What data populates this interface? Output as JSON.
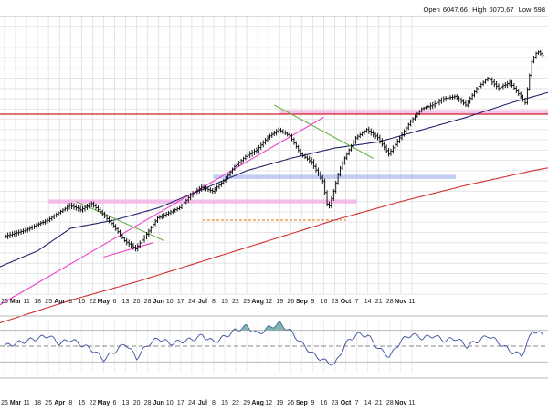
{
  "header": {
    "open_label": "Open",
    "open_value": "6047.66",
    "high_label": "High",
    "high_value": "6070.67",
    "low_label": "Low",
    "low_value": "598"
  },
  "chart_data": {
    "type": "ohlc",
    "title": "",
    "xlabel": "",
    "ylabel": "",
    "grid": true,
    "x_ticks": [
      {
        "label": "26",
        "month": false
      },
      {
        "label": "Mar",
        "month": true
      },
      {
        "label": "11",
        "month": false
      },
      {
        "label": "18",
        "month": false
      },
      {
        "label": "25",
        "month": false
      },
      {
        "label": "Apr",
        "month": true
      },
      {
        "label": "8",
        "month": false
      },
      {
        "label": "15",
        "month": false
      },
      {
        "label": "22",
        "month": false
      },
      {
        "label": "May",
        "month": true
      },
      {
        "label": "6",
        "month": false
      },
      {
        "label": "13",
        "month": false
      },
      {
        "label": "20",
        "month": false
      },
      {
        "label": "28",
        "month": false
      },
      {
        "label": "Jun",
        "month": true
      },
      {
        "label": "10",
        "month": false
      },
      {
        "label": "17",
        "month": false
      },
      {
        "label": "24",
        "month": false
      },
      {
        "label": "Jul",
        "month": true
      },
      {
        "label": "8",
        "month": false
      },
      {
        "label": "15",
        "month": false
      },
      {
        "label": "22",
        "month": false
      },
      {
        "label": "29",
        "month": false
      },
      {
        "label": "Aug",
        "month": true
      },
      {
        "label": "12",
        "month": false
      },
      {
        "label": "19",
        "month": false
      },
      {
        "label": "26",
        "month": false
      },
      {
        "label": "Sep",
        "month": true
      },
      {
        "label": "9",
        "month": false
      },
      {
        "label": "16",
        "month": false
      },
      {
        "label": "23",
        "month": false
      },
      {
        "label": "Oct",
        "month": true
      },
      {
        "label": "7",
        "month": false
      },
      {
        "label": "14",
        "month": false
      },
      {
        "label": "21",
        "month": false
      },
      {
        "label": "28",
        "month": false
      },
      {
        "label": "Nov",
        "month": true
      },
      {
        "label": "11",
        "month": false
      }
    ],
    "price_series": {
      "name": "",
      "waypoints": [
        [
          0,
          5080
        ],
        [
          2,
          5110
        ],
        [
          4,
          5160
        ],
        [
          6,
          5230
        ],
        [
          7,
          5210
        ],
        [
          8,
          5240
        ],
        [
          9,
          5190
        ],
        [
          10,
          5130
        ],
        [
          11,
          5060
        ],
        [
          12,
          5020
        ],
        [
          13,
          5090
        ],
        [
          14,
          5170
        ],
        [
          16,
          5220
        ],
        [
          17,
          5280
        ],
        [
          18,
          5320
        ],
        [
          19,
          5300
        ],
        [
          20,
          5350
        ],
        [
          21,
          5420
        ],
        [
          22,
          5470
        ],
        [
          23,
          5500
        ],
        [
          24,
          5560
        ],
        [
          25,
          5600
        ],
        [
          26,
          5570
        ],
        [
          27,
          5480
        ],
        [
          28,
          5440
        ],
        [
          29,
          5350
        ],
        [
          29.5,
          5210
        ],
        [
          30,
          5300
        ],
        [
          30.5,
          5400
        ],
        [
          31,
          5460
        ],
        [
          32,
          5560
        ],
        [
          33,
          5600
        ],
        [
          34,
          5560
        ],
        [
          35,
          5480
        ],
        [
          36,
          5560
        ],
        [
          37,
          5640
        ],
        [
          38,
          5700
        ],
        [
          39,
          5720
        ],
        [
          40,
          5750
        ],
        [
          41,
          5760
        ],
        [
          42,
          5720
        ],
        [
          43,
          5800
        ],
        [
          44,
          5850
        ],
        [
          45,
          5800
        ],
        [
          46,
          5830
        ],
        [
          47,
          5760
        ],
        [
          47.4,
          5730
        ],
        [
          48,
          5930
        ],
        [
          48.5,
          5980
        ],
        [
          49,
          5960
        ]
      ]
    },
    "moving_averages": [
      {
        "name": "",
        "color": "#23236b",
        "waypoints": [
          [
            -1,
            4920
          ],
          [
            3,
            5010
          ],
          [
            6,
            5120
          ],
          [
            10,
            5160
          ],
          [
            14,
            5220
          ],
          [
            18,
            5310
          ],
          [
            22,
            5400
          ],
          [
            26,
            5460
          ],
          [
            30,
            5510
          ],
          [
            34,
            5540
          ],
          [
            38,
            5600
          ],
          [
            42,
            5660
          ],
          [
            46,
            5730
          ],
          [
            50,
            5790
          ]
        ]
      },
      {
        "name": "",
        "color": "#d32f2f",
        "waypoints": [
          [
            -1,
            4650
          ],
          [
            6,
            4770
          ],
          [
            12,
            4860
          ],
          [
            18,
            4960
          ],
          [
            24,
            5060
          ],
          [
            30,
            5160
          ],
          [
            36,
            5250
          ],
          [
            42,
            5330
          ],
          [
            48,
            5400
          ],
          [
            50,
            5420
          ]
        ]
      }
    ],
    "annotations": {
      "trendlines": [
        {
          "color": "#6ab04c",
          "points": [
            [
              6.5,
              5250
            ],
            [
              14.5,
              5060
            ]
          ]
        },
        {
          "color": "#6ab04c",
          "points": [
            [
              24.5,
              5720
            ],
            [
              33.5,
              5460
            ]
          ]
        },
        {
          "color": "#ee44cc",
          "points": [
            [
              -1,
              4730
            ],
            [
              29,
              5660
            ]
          ]
        },
        {
          "color": "#ee44cc",
          "points": [
            [
              9,
              4980
            ],
            [
              13.5,
              5050
            ]
          ]
        }
      ],
      "horizontal_lines": [
        {
          "color": "#cc2222",
          "y": 5675,
          "x_range": [
            -1,
            50
          ]
        },
        {
          "color": "#e67e22",
          "y": 5160,
          "x_range": [
            18,
            31
          ],
          "dashed": true
        }
      ],
      "zones": [
        {
          "color": "#f4a7e6",
          "y_range": [
            5240,
            5260
          ],
          "x_range": [
            4,
            32
          ]
        },
        {
          "color": "#aab8f0",
          "y_range": [
            5360,
            5380
          ],
          "x_range": [
            19,
            41
          ]
        },
        {
          "color": "#f4a7e6",
          "y_range": [
            5675,
            5695
          ],
          "x_range": [
            25,
            50
          ]
        }
      ]
    },
    "ylim": [
      4800,
      6150
    ],
    "indicator": {
      "name": "",
      "ylim": [
        -100,
        100
      ],
      "levels": [
        60,
        0,
        -60
      ],
      "waypoints": [
        [
          0,
          0
        ],
        [
          2,
          20
        ],
        [
          4,
          40
        ],
        [
          5,
          10
        ],
        [
          6,
          25
        ],
        [
          7,
          5
        ],
        [
          8,
          -15
        ],
        [
          9,
          -50
        ],
        [
          10,
          -20
        ],
        [
          11,
          10
        ],
        [
          12,
          -45
        ],
        [
          13,
          5
        ],
        [
          14,
          30
        ],
        [
          15,
          10
        ],
        [
          17,
          25
        ],
        [
          18,
          40
        ],
        [
          19,
          15
        ],
        [
          20,
          35
        ],
        [
          21,
          60
        ],
        [
          22,
          75
        ],
        [
          23,
          45
        ],
        [
          24,
          70
        ],
        [
          25,
          85
        ],
        [
          26,
          55
        ],
        [
          27,
          10
        ],
        [
          28,
          -30
        ],
        [
          29,
          -55
        ],
        [
          30,
          -70
        ],
        [
          31,
          10
        ],
        [
          32,
          45
        ],
        [
          33,
          40
        ],
        [
          34,
          -10
        ],
        [
          35,
          -40
        ],
        [
          36,
          20
        ],
        [
          37,
          45
        ],
        [
          38,
          30
        ],
        [
          39,
          40
        ],
        [
          40,
          20
        ],
        [
          41,
          30
        ],
        [
          42,
          0
        ],
        [
          43,
          20
        ],
        [
          44,
          40
        ],
        [
          45,
          10
        ],
        [
          46,
          -20
        ],
        [
          47,
          -35
        ],
        [
          48,
          60
        ],
        [
          49,
          40
        ]
      ]
    }
  }
}
